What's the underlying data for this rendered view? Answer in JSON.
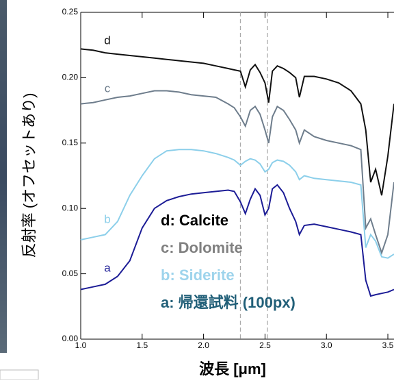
{
  "chart_data": {
    "type": "line",
    "x_label": "波長 [μm]",
    "y_label": "反射率 (オフセットあり)",
    "xlim": [
      1.0,
      3.55
    ],
    "ylim": [
      0,
      0.25
    ],
    "xticks": [
      {
        "value": 1,
        "label": "1.0"
      },
      1.5,
      {
        "value": 2,
        "label": "2.0"
      },
      2.5,
      {
        "value": 3,
        "label": "3.0"
      },
      3.5
    ],
    "yticks": [
      {
        "value": 0,
        "label": "0.00"
      },
      0.05,
      {
        "value": 0.1,
        "label": "0.10"
      },
      0.15,
      {
        "value": 0.2,
        "label": "0.20"
      },
      0.25
    ],
    "vlines": [
      2.3,
      2.52
    ],
    "x": [
      1.0,
      1.1,
      1.2,
      1.3,
      1.4,
      1.5,
      1.6,
      1.7,
      1.8,
      1.9,
      2.0,
      2.1,
      2.2,
      2.25,
      2.3,
      2.34,
      2.38,
      2.42,
      2.46,
      2.5,
      2.53,
      2.56,
      2.6,
      2.65,
      2.7,
      2.75,
      2.78,
      2.82,
      2.9,
      3.0,
      3.1,
      3.2,
      3.28,
      3.32,
      3.36,
      3.4,
      3.45,
      3.5,
      3.55
    ],
    "series": [
      {
        "name": "d: Calcite",
        "label": "d",
        "color": "#111111",
        "text_color": "#000000",
        "values": [
          0.222,
          0.221,
          0.219,
          0.218,
          0.217,
          0.216,
          0.215,
          0.214,
          0.213,
          0.212,
          0.211,
          0.209,
          0.207,
          0.206,
          0.205,
          0.193,
          0.206,
          0.21,
          0.204,
          0.196,
          0.181,
          0.205,
          0.209,
          0.207,
          0.204,
          0.2,
          0.185,
          0.201,
          0.201,
          0.199,
          0.196,
          0.19,
          0.18,
          0.16,
          0.12,
          0.13,
          0.11,
          0.14,
          0.18
        ]
      },
      {
        "name": "c: Dolomite",
        "label": "c",
        "color": "#6e7d8c",
        "text_color": "#808080",
        "values": [
          0.18,
          0.181,
          0.183,
          0.185,
          0.186,
          0.188,
          0.19,
          0.19,
          0.189,
          0.187,
          0.186,
          0.185,
          0.18,
          0.177,
          0.17,
          0.163,
          0.175,
          0.178,
          0.172,
          0.16,
          0.15,
          0.17,
          0.178,
          0.175,
          0.168,
          0.16,
          0.15,
          0.16,
          0.155,
          0.152,
          0.15,
          0.148,
          0.145,
          0.085,
          0.092,
          0.08,
          0.066,
          0.08,
          0.12
        ]
      },
      {
        "name": "b: Siderite",
        "label": "b",
        "color": "#8ccfea",
        "text_color": "#9ed4ec",
        "values": [
          0.076,
          0.078,
          0.08,
          0.09,
          0.11,
          0.125,
          0.138,
          0.144,
          0.145,
          0.145,
          0.144,
          0.142,
          0.139,
          0.137,
          0.133,
          0.136,
          0.138,
          0.137,
          0.134,
          0.128,
          0.13,
          0.135,
          0.137,
          0.136,
          0.133,
          0.128,
          0.122,
          0.125,
          0.123,
          0.122,
          0.121,
          0.12,
          0.118,
          0.07,
          0.08,
          0.075,
          0.063,
          0.062,
          0.065
        ]
      },
      {
        "name": "a: 帰還試料 (100px)",
        "label": "a",
        "color": "#1c1c96",
        "text_color": "#215f78",
        "values": [
          0.038,
          0.04,
          0.042,
          0.048,
          0.06,
          0.085,
          0.1,
          0.106,
          0.109,
          0.111,
          0.112,
          0.113,
          0.114,
          0.113,
          0.105,
          0.096,
          0.107,
          0.115,
          0.11,
          0.095,
          0.1,
          0.115,
          0.118,
          0.112,
          0.1,
          0.09,
          0.08,
          0.087,
          0.088,
          0.086,
          0.084,
          0.082,
          0.08,
          0.045,
          0.033,
          0.034,
          0.035,
          0.036,
          0.038
        ]
      }
    ]
  }
}
